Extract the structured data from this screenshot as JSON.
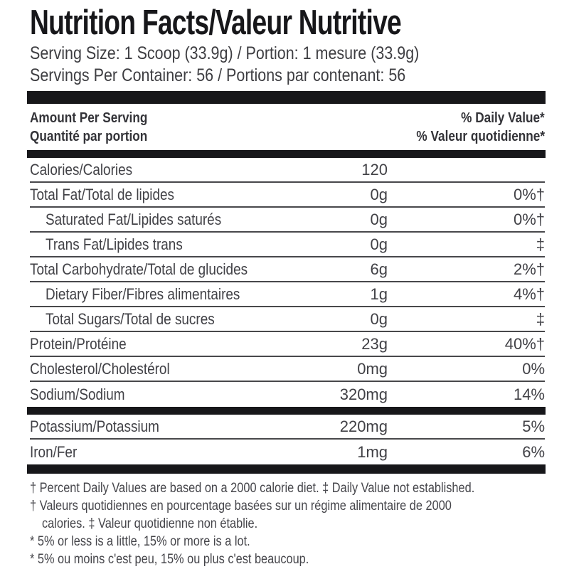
{
  "colors": {
    "ink": "#17171a",
    "body_text": "#414146",
    "rule": "#48484b",
    "background": "#ffffff"
  },
  "header": {
    "title": "Nutrition Facts/Valeur Nutritive",
    "serving_size": "Serving Size: 1 Scoop (33.9g) / Portion: 1 mesure (33.9g)",
    "servings_per_container": "Servings Per Container: 56 / Portions par contenant: 56"
  },
  "column_headers": {
    "amount_en": "Amount Per Serving",
    "amount_fr": "Quantité par portion",
    "daily_value_en": "% Daily Value*",
    "daily_value_fr": "% Valeur quotidienne*"
  },
  "table": {
    "rows": [
      {
        "label": "Calories/Calories",
        "amount": "120",
        "daily_value": ""
      },
      {
        "label": "Total Fat/Total de lipides",
        "amount": "0g",
        "daily_value": "0%†"
      },
      {
        "label": "Saturated Fat/Lipides saturés",
        "amount": "0g",
        "daily_value": "0%†"
      },
      {
        "label": "Trans Fat/Lipides trans",
        "amount": "0g",
        "daily_value": "‡"
      },
      {
        "label": "Total Carbohydrate/Total de glucides",
        "amount": "6g",
        "daily_value": "2%†"
      },
      {
        "label": "Dietary Fiber/Fibres alimentaires",
        "amount": "1g",
        "daily_value": "4%†"
      },
      {
        "label": "Total Sugars/Total de sucres",
        "amount": "0g",
        "daily_value": "‡"
      },
      {
        "label": "Protein/Protéine",
        "amount": "23g",
        "daily_value": "40%†"
      },
      {
        "label": "Cholesterol/Cholestérol",
        "amount": "0mg",
        "daily_value": "0%"
      },
      {
        "label": "Sodium/Sodium",
        "amount": "320mg",
        "daily_value": "14%"
      },
      {
        "label": "Potassium/Potassium",
        "amount": "220mg",
        "daily_value": "5%"
      },
      {
        "label": "Iron/Fer",
        "amount": "1mg",
        "daily_value": "6%"
      }
    ]
  },
  "footnotes": {
    "line1": "† Percent Daily Values are based on a 2000 calorie diet. ‡ Daily Value not established.",
    "line2": "† Valeurs quotidiennes en pourcentage basées sur un régime alimentaire de 2000",
    "line3": "calories. ‡ Valeur quotidienne non établie.",
    "line4": "* 5% or less is a little, 15% or more is a lot.",
    "line5": "* 5% ou moins c'est peu, 15% ou plus c'est beaucoup."
  }
}
